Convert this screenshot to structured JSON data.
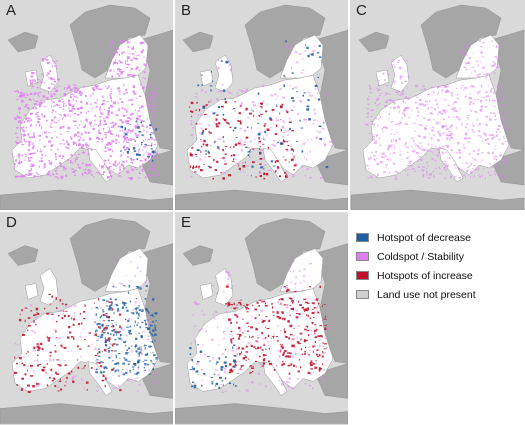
{
  "panels": [
    {
      "letter": "A",
      "pattern": "coldspot"
    },
    {
      "letter": "B",
      "pattern": "mixed"
    },
    {
      "letter": "C",
      "pattern": "coldspot-light"
    },
    {
      "letter": "D",
      "pattern": "decrease-east"
    },
    {
      "letter": "E",
      "pattern": "increase-central"
    }
  ],
  "legend": {
    "items": [
      {
        "label": "Hotspot of decrease",
        "color": "#1f5fa6"
      },
      {
        "label": "Coldspot / Stability",
        "color": "#e07ef2"
      },
      {
        "label": "Hotspots of increase",
        "color": "#c0102a"
      },
      {
        "label": "Land use not present",
        "color": "#cfcfcf"
      }
    ]
  },
  "colors": {
    "sea": "#d9d9d9",
    "non_eu_land": "#a6a6a6",
    "eu_land": "#ffffff",
    "stability": "#e07ef2",
    "decrease": "#1f5fa6",
    "increase": "#c0102a"
  }
}
